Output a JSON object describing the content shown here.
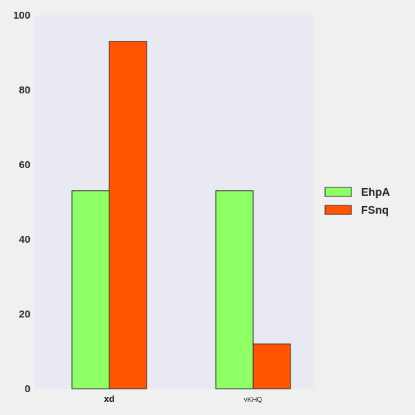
{
  "chart_data": {
    "type": "bar",
    "categories": [
      "xd",
      "vKHQ"
    ],
    "series": [
      {
        "name": "EhpA",
        "values": [
          53,
          53
        ]
      },
      {
        "name": "FSnq",
        "values": [
          93,
          12
        ]
      }
    ],
    "ylim": [
      0,
      100
    ],
    "yticks": [
      0,
      20,
      40,
      60,
      80,
      100
    ],
    "title": "",
    "xlabel": "",
    "ylabel": "",
    "grid": false,
    "legend_position": "right",
    "colors": {
      "background": "#f0f0f0",
      "plot_background": "#e9e9f2",
      "EhpA": "#8fff66",
      "FSnq": "#ff5500",
      "edge": "#222222"
    }
  }
}
